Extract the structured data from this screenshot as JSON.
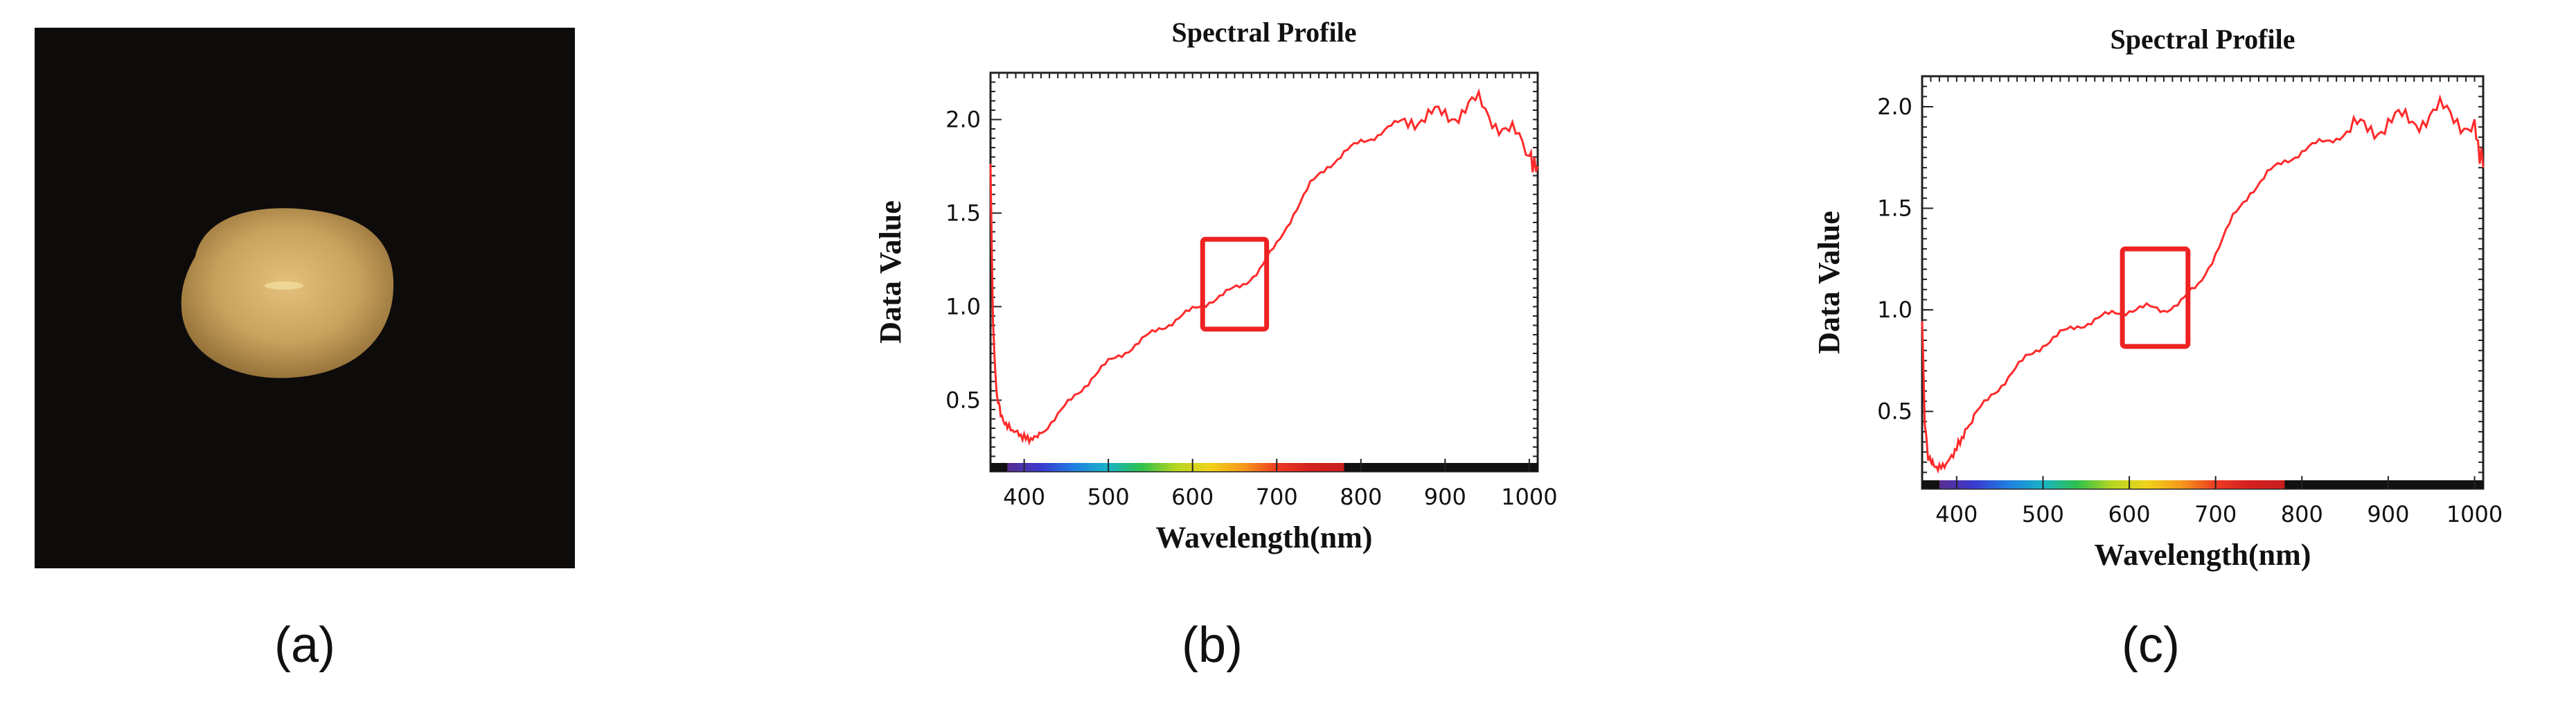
{
  "panels": {
    "a": {
      "caption": "(a)"
    },
    "b": {
      "caption": "(b)"
    },
    "c": {
      "caption": "(c)"
    }
  },
  "colors": {
    "line": "#ff2a2a",
    "highlight_box": "#ee2222",
    "background_image": "#0e0b0b",
    "seed": "#c9a35d"
  },
  "chart_data": [
    {
      "type": "line",
      "title": "Spectral Profile",
      "xlabel": "Wavelength(nm)",
      "ylabel": "Data Value",
      "xlim": [
        360,
        1010
      ],
      "ylim": [
        0.12,
        2.25
      ],
      "xticks": [
        400,
        500,
        600,
        700,
        800,
        900,
        1000
      ],
      "yticks": [
        0.5,
        1.0,
        1.5,
        2.0
      ],
      "ytick_labels": [
        "0.5",
        "1.0",
        "1.5",
        "2.0"
      ],
      "highlight": {
        "x": [
          612,
          688
        ],
        "y": [
          0.88,
          1.36
        ]
      },
      "series": [
        {
          "x": [
            360,
            363,
            367,
            372,
            380,
            390,
            400,
            410,
            420,
            440,
            460,
            480,
            500,
            520,
            540,
            560,
            580,
            600,
            620,
            640,
            660,
            680,
            700,
            720,
            740,
            760,
            780,
            800,
            820,
            840,
            860,
            880,
            900,
            920,
            940,
            960,
            980,
            1000,
            1010
          ],
          "y": [
            1.75,
            0.9,
            0.55,
            0.42,
            0.36,
            0.33,
            0.3,
            0.29,
            0.33,
            0.42,
            0.52,
            0.62,
            0.7,
            0.76,
            0.82,
            0.88,
            0.93,
            0.98,
            1.03,
            1.07,
            1.12,
            1.2,
            1.33,
            1.5,
            1.65,
            1.75,
            1.82,
            1.88,
            1.92,
            1.97,
            2.02,
            2.0,
            2.03,
            2.05,
            2.08,
            2.0,
            1.92,
            1.8,
            1.75
          ]
        }
      ]
    },
    {
      "type": "line",
      "title": "Spectral Profile",
      "xlabel": "Wavelength(nm)",
      "ylabel": "Data Value",
      "xlim": [
        360,
        1010
      ],
      "ylim": [
        0.12,
        2.15
      ],
      "xticks": [
        400,
        500,
        600,
        700,
        800,
        900,
        1000
      ],
      "yticks": [
        0.5,
        1.0,
        1.5,
        2.0
      ],
      "ytick_labels": [
        "0.5",
        "1.0",
        "1.5",
        "2.0"
      ],
      "highlight": {
        "x": [
          592,
          668
        ],
        "y": [
          0.82,
          1.3
        ]
      },
      "series": [
        {
          "x": [
            360,
            363,
            367,
            372,
            380,
            390,
            400,
            410,
            420,
            440,
            460,
            480,
            500,
            520,
            540,
            560,
            580,
            600,
            620,
            640,
            660,
            680,
            700,
            720,
            740,
            760,
            780,
            800,
            820,
            840,
            860,
            880,
            900,
            920,
            940,
            960,
            980,
            1000,
            1010
          ],
          "y": [
            0.95,
            0.45,
            0.28,
            0.24,
            0.22,
            0.25,
            0.32,
            0.4,
            0.47,
            0.58,
            0.67,
            0.76,
            0.83,
            0.88,
            0.92,
            0.95,
            0.98,
            1.0,
            1.01,
            1.0,
            1.04,
            1.12,
            1.28,
            1.45,
            1.58,
            1.67,
            1.73,
            1.78,
            1.82,
            1.85,
            1.88,
            1.9,
            1.92,
            1.93,
            1.95,
            1.97,
            1.95,
            1.9,
            1.7
          ]
        }
      ]
    }
  ]
}
